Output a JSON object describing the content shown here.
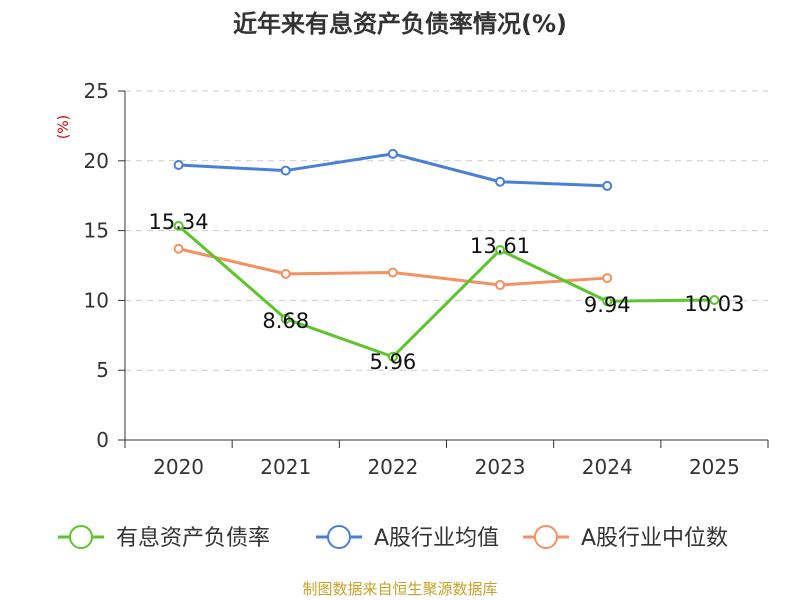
{
  "chart_data": {
    "type": "line",
    "title": "近年来有息资产负债率情况(%)",
    "y_unit": "(%)",
    "categories": [
      "2020",
      "2021",
      "2022",
      "2023",
      "2024",
      "2025"
    ],
    "ylim": [
      0,
      25
    ],
    "yticks": [
      0,
      5,
      10,
      15,
      20,
      25
    ],
    "grid": true,
    "legend_position": "bottom",
    "series": [
      {
        "name": "有息资产负债率",
        "color": "#5cc52b",
        "values": [
          15.34,
          8.68,
          5.96,
          13.61,
          9.94,
          10.03
        ],
        "labels": [
          "15.34",
          "8.68",
          "5.96",
          "13.61",
          "9.94",
          "10.03"
        ]
      },
      {
        "name": "A股行业均值",
        "color": "#4a7fd8",
        "values": [
          19.7,
          19.3,
          20.5,
          18.5,
          18.2,
          null
        ]
      },
      {
        "name": "A股行业中位数",
        "color": "#f59062",
        "values": [
          13.7,
          11.9,
          12.0,
          11.1,
          11.6,
          null
        ]
      }
    ],
    "source": "制图数据来自恒生聚源数据库",
    "source_color": "#c9a227",
    "unit_color": "#cc0000"
  }
}
